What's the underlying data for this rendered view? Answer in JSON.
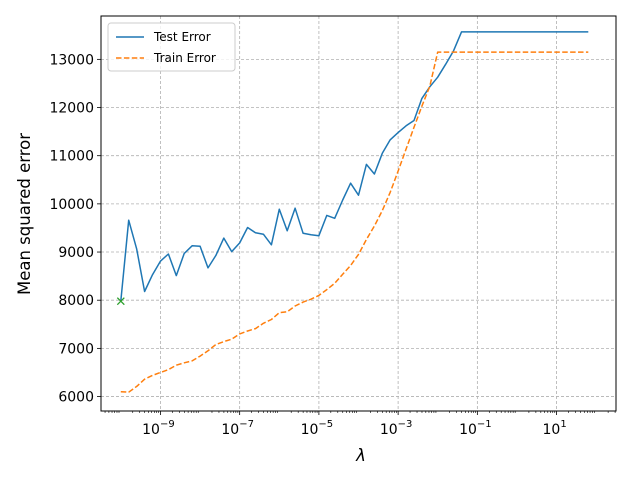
{
  "chart_data": {
    "type": "line",
    "xscale": "log",
    "xlabel": "λ",
    "ylabel": "Mean squared error",
    "xlim": [
      3.16e-11,
      316
    ],
    "ylim": [
      5700,
      13900
    ],
    "x_ticks": [
      {
        "value": 1e-09,
        "base": "10",
        "exp": "−9"
      },
      {
        "value": 1e-07,
        "base": "10",
        "exp": "−7"
      },
      {
        "value": 1e-05,
        "base": "10",
        "exp": "−5"
      },
      {
        "value": 0.001,
        "base": "10",
        "exp": "−3"
      },
      {
        "value": 0.1,
        "base": "10",
        "exp": "−1"
      },
      {
        "value": 10,
        "base": "10",
        "exp": "1"
      }
    ],
    "y_ticks": [
      {
        "value": 6000,
        "label": "6000"
      },
      {
        "value": 7000,
        "label": "7000"
      },
      {
        "value": 8000,
        "label": "8000"
      },
      {
        "value": 9000,
        "label": "9000"
      },
      {
        "value": 10000,
        "label": "10000"
      },
      {
        "value": 11000,
        "label": "11000"
      },
      {
        "value": 12000,
        "label": "12000"
      },
      {
        "value": 13000,
        "label": "13000"
      }
    ],
    "grid": true,
    "legend_position": "top-left",
    "x": [
      1e-10,
      1.585e-10,
      2.512e-10,
      3.981e-10,
      6.31e-10,
      1e-09,
      1.585e-09,
      2.512e-09,
      3.981e-09,
      6.31e-09,
      1e-08,
      1.585e-08,
      2.512e-08,
      3.981e-08,
      6.31e-08,
      1e-07,
      1.585e-07,
      2.512e-07,
      3.981e-07,
      6.31e-07,
      1e-06,
      1.585e-06,
      2.512e-06,
      3.981e-06,
      6.31e-06,
      1e-05,
      1.585e-05,
      2.512e-05,
      3.981e-05,
      6.31e-05,
      0.0001,
      0.0001585,
      0.0002512,
      0.0003981,
      0.000631,
      0.001,
      0.001585,
      0.002512,
      0.003981,
      0.00631,
      0.01,
      0.01585,
      0.02512,
      0.03981,
      0.0631,
      0.1,
      0.1585,
      0.2512,
      0.3981,
      0.631,
      1,
      1.585,
      2.512,
      3.981,
      6.31,
      10,
      15.85,
      25.12,
      39.81,
      63.1,
      100
    ],
    "series": [
      {
        "name": "Test Error",
        "color": "#1f77b4",
        "style": "solid",
        "values": [
          7980,
          9660,
          9060,
          8180,
          8530,
          8810,
          8960,
          8510,
          8970,
          9130,
          9120,
          8670,
          8930,
          9290,
          9010,
          9190,
          9510,
          9400,
          9370,
          9150,
          9890,
          9440,
          9910,
          9390,
          9360,
          9340,
          9760,
          9700,
          10080,
          10430,
          10180,
          10820,
          10620,
          11050,
          11330,
          11480,
          11620,
          11730,
          12190,
          12430,
          12630,
          12900,
          13180,
          13570,
          13570,
          13570,
          13570,
          13570,
          13570,
          13570,
          13570,
          13570,
          13570,
          13570,
          13570,
          13570,
          13570,
          13570,
          13570,
          13570,
          13570
        ]
      },
      {
        "name": "Train Error",
        "color": "#ff7f0e",
        "style": "dashed",
        "values": [
          6100,
          6090,
          6210,
          6360,
          6440,
          6500,
          6560,
          6650,
          6700,
          6740,
          6840,
          6950,
          7080,
          7140,
          7190,
          7300,
          7360,
          7410,
          7520,
          7600,
          7740,
          7760,
          7880,
          7960,
          8020,
          8100,
          8220,
          8350,
          8540,
          8720,
          8950,
          9260,
          9540,
          9860,
          10240,
          10680,
          11140,
          11590,
          12030,
          12440,
          13150,
          13150,
          13150,
          13150,
          13150,
          13150,
          13150,
          13150,
          13150,
          13150,
          13150,
          13150,
          13150,
          13150,
          13150,
          13150,
          13150,
          13150,
          13150,
          13150,
          13150
        ]
      }
    ],
    "min_marker": {
      "x": 1e-10,
      "y": 7980,
      "symbol": "×",
      "color": "#2ca02c"
    }
  }
}
